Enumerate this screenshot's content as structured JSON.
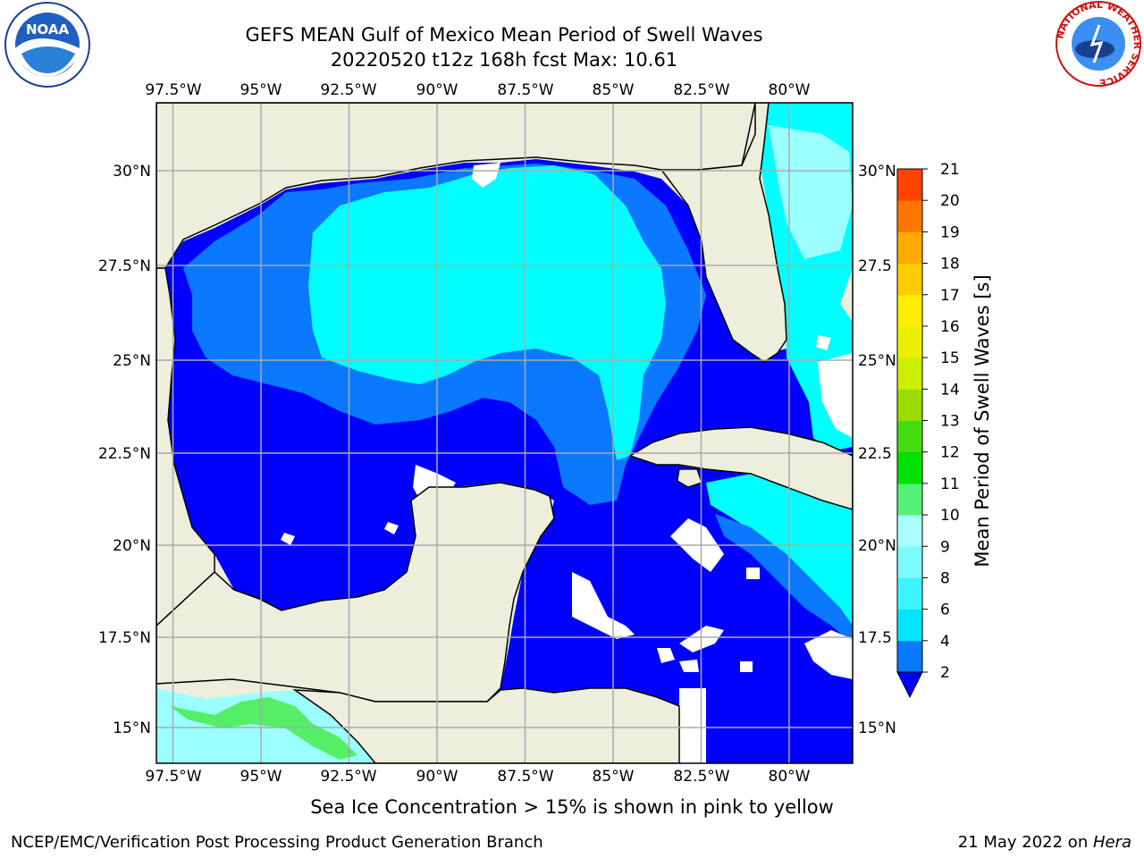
{
  "header": {
    "title": "GEFS MEAN Gulf of Mexico Mean Period of Swell Waves",
    "subtitle": "20220520 t12z 168h fcst   Max: 10.61"
  },
  "map": {
    "lon_labels": [
      "97.5°W",
      "95°W",
      "92.5°W",
      "90°W",
      "87.5°W",
      "85°W",
      "82.5°W",
      "80°W"
    ],
    "lat_labels": [
      "30°N",
      "27.5°N",
      "25°N",
      "22.5°N",
      "20°N",
      "17.5°N",
      "15°N"
    ],
    "right_lat_labels": [
      "30°N",
      "27.5",
      "25°N",
      "22.5",
      "20°N",
      "17.5",
      "15°N"
    ],
    "colors": {
      "land": "#eeeedc",
      "grid": "#aaaaaa",
      "blue": "#0000ff",
      "mid_blue": "#0a78ff",
      "cyan": "#00ffff",
      "light_cyan": "#9bffff",
      "green": "#55ee66"
    }
  },
  "colorbar": {
    "label": "Mean Period of Swell Waves [s]",
    "ticks": [
      "2",
      "4",
      "6",
      "8",
      "9",
      "10",
      "11",
      "12",
      "13",
      "14",
      "15",
      "16",
      "17",
      "18",
      "19",
      "20",
      "21"
    ],
    "colors": [
      "#0a78ff",
      "#00e5ff",
      "#3cf5ff",
      "#7cfcff",
      "#aaffff",
      "#55f077",
      "#00e000",
      "#44dd11",
      "#99dd00",
      "#ccee00",
      "#eeee00",
      "#ffee00",
      "#ffcc00",
      "#ffaa00",
      "#ff7700",
      "#ff4400",
      "#ff0000"
    ],
    "extend_color": "#0000ff"
  },
  "note": "Sea Ice Concentration > 15% is shown in pink to yellow",
  "footer": {
    "left": "NCEP/EMC/Verification Post Processing Product Generation Branch",
    "right_prefix": "21 May 2022 on ",
    "right_host": "Hera"
  },
  "logos": {
    "noaa_text": "NOAA",
    "nws_text": "NATIONAL WEATHER SERVICE"
  }
}
